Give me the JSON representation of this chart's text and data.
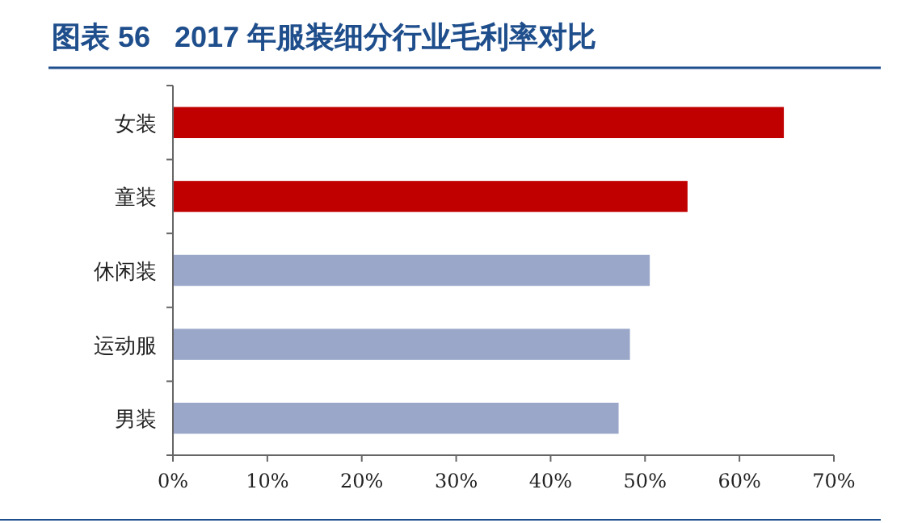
{
  "chart_data": {
    "type": "bar",
    "orientation": "horizontal",
    "title": "图表 56   2017 年服装细分行业毛利率对比",
    "categories": [
      "女装",
      "童装",
      "休闲装",
      "运动服",
      "男装"
    ],
    "values": [
      64.7,
      54.5,
      50.5,
      48.4,
      47.2
    ],
    "colors": [
      "#c00000",
      "#c00000",
      "#9aa7c9",
      "#9aa7c9",
      "#9aa7c9"
    ],
    "xlim": [
      0,
      70
    ],
    "xticks": [
      {
        "value": 0,
        "label": "0%"
      },
      {
        "value": 10,
        "label": "10%"
      },
      {
        "value": 20,
        "label": "20%"
      },
      {
        "value": 30,
        "label": "30%"
      },
      {
        "value": 40,
        "label": "40%"
      },
      {
        "value": 50,
        "label": "50%"
      },
      {
        "value": 60,
        "label": "60%"
      },
      {
        "value": 70,
        "label": "70%"
      }
    ],
    "grid": false
  }
}
